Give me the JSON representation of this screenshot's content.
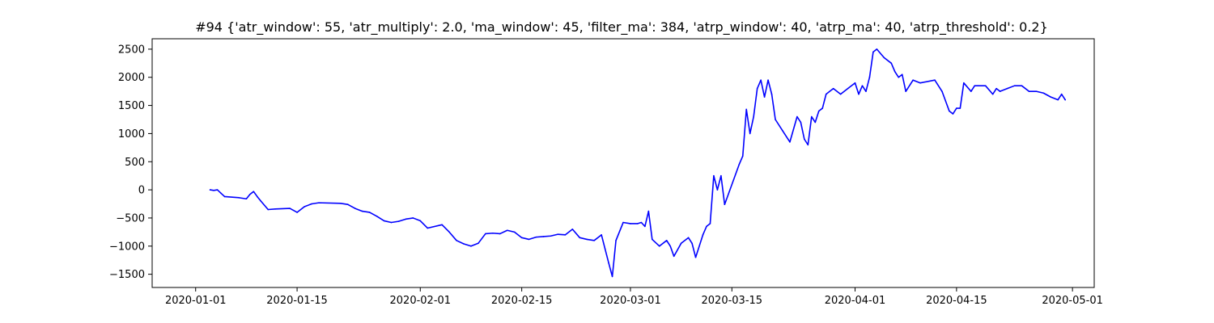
{
  "chart_data": {
    "type": "line",
    "title": "#94 {'atr_window': 55, 'atr_multiply': 2.0, 'ma_window': 45, 'filter_ma': 384, 'atrp_window': 40, 'atrp_ma': 40, 'atrp_threshold': 0.2}",
    "xlabel": "",
    "ylabel": "",
    "x_axis_type": "date",
    "xlim": [
      "2019-12-26",
      "2020-05-04"
    ],
    "ylim": [
      -1735,
      2685
    ],
    "grid": false,
    "colors": {
      "line": "#0000ff",
      "axes": "#000000",
      "background": "#ffffff"
    },
    "x_ticks": [
      {
        "date": "2020-01-01",
        "label": "2020-01-01"
      },
      {
        "date": "2020-01-15",
        "label": "2020-01-15"
      },
      {
        "date": "2020-02-01",
        "label": "2020-02-01"
      },
      {
        "date": "2020-02-15",
        "label": "2020-02-15"
      },
      {
        "date": "2020-03-01",
        "label": "2020-03-01"
      },
      {
        "date": "2020-03-15",
        "label": "2020-03-15"
      },
      {
        "date": "2020-04-01",
        "label": "2020-04-01"
      },
      {
        "date": "2020-04-15",
        "label": "2020-04-15"
      },
      {
        "date": "2020-05-01",
        "label": "2020-05-01"
      }
    ],
    "y_ticks": [
      {
        "value": 2500,
        "label": "2500"
      },
      {
        "value": 2000,
        "label": "2000"
      },
      {
        "value": 1500,
        "label": "1500"
      },
      {
        "value": 1000,
        "label": "1000"
      },
      {
        "value": 500,
        "label": "500"
      },
      {
        "value": 0,
        "label": "0"
      },
      {
        "value": -500,
        "label": "−500"
      },
      {
        "value": -1000,
        "label": "−1000"
      },
      {
        "value": -1500,
        "label": "−1500"
      }
    ],
    "series": [
      {
        "x": [
          "2020-01-03T00:00",
          "2020-01-03T12:00",
          "2020-01-04T00:00",
          "2020-01-04T12:00",
          "2020-01-05T00:00",
          "2020-01-07T00:00",
          "2020-01-08T00:00",
          "2020-01-08T12:00",
          "2020-01-09T00:00",
          "2020-01-09T12:00",
          "2020-01-10T00:00",
          "2020-01-11T00:00",
          "2020-01-12T00:00",
          "2020-01-14T00:00",
          "2020-01-15T00:00",
          "2020-01-16T00:00",
          "2020-01-17T00:00",
          "2020-01-18T00:00",
          "2020-01-21T00:00",
          "2020-01-22T00:00",
          "2020-01-23T00:00",
          "2020-01-24T00:00",
          "2020-01-25T00:00",
          "2020-01-26T00:00",
          "2020-01-27T00:00",
          "2020-01-28T00:00",
          "2020-01-29T00:00",
          "2020-01-30T00:00",
          "2020-01-31T00:00",
          "2020-02-01T00:00",
          "2020-02-02T00:00",
          "2020-02-04T00:00",
          "2020-02-05T00:00",
          "2020-02-06T00:00",
          "2020-02-07T00:00",
          "2020-02-08T00:00",
          "2020-02-09T00:00",
          "2020-02-10T00:00",
          "2020-02-11T00:00",
          "2020-02-12T00:00",
          "2020-02-13T00:00",
          "2020-02-14T00:00",
          "2020-02-15T00:00",
          "2020-02-16T00:00",
          "2020-02-17T00:00",
          "2020-02-18T00:00",
          "2020-02-19T00:00",
          "2020-02-20T00:00",
          "2020-02-21T00:00",
          "2020-02-22T00:00",
          "2020-02-23T00:00",
          "2020-02-24T00:00",
          "2020-02-25T00:00",
          "2020-02-26T00:00",
          "2020-02-26T12:00",
          "2020-02-27T00:00",
          "2020-02-27T12:00",
          "2020-02-28T00:00",
          "2020-02-29T00:00",
          "2020-03-01T00:00",
          "2020-03-02T00:00",
          "2020-03-02T12:00",
          "2020-03-03T00:00",
          "2020-03-03T12:00",
          "2020-03-04T00:00",
          "2020-03-05T00:00",
          "2020-03-06T00:00",
          "2020-03-06T12:00",
          "2020-03-07T00:00",
          "2020-03-08T00:00",
          "2020-03-09T00:00",
          "2020-03-09T12:00",
          "2020-03-10T00:00",
          "2020-03-11T00:00",
          "2020-03-11T12:00",
          "2020-03-12T00:00",
          "2020-03-12T12:00",
          "2020-03-13T00:00",
          "2020-03-13T12:00",
          "2020-03-14T00:00",
          "2020-03-16T00:00",
          "2020-03-16T12:00",
          "2020-03-17T00:00",
          "2020-03-17T12:00",
          "2020-03-18T00:00",
          "2020-03-18T12:00",
          "2020-03-19T00:00",
          "2020-03-19T12:00",
          "2020-03-20T00:00",
          "2020-03-20T12:00",
          "2020-03-21T00:00",
          "2020-03-22T00:00",
          "2020-03-23T00:00",
          "2020-03-24T00:00",
          "2020-03-24T12:00",
          "2020-03-25T00:00",
          "2020-03-25T12:00",
          "2020-03-26T00:00",
          "2020-03-26T12:00",
          "2020-03-27T00:00",
          "2020-03-27T12:00",
          "2020-03-28T00:00",
          "2020-03-29T00:00",
          "2020-03-30T00:00",
          "2020-03-31T00:00",
          "2020-04-01T00:00",
          "2020-04-01T12:00",
          "2020-04-02T00:00",
          "2020-04-02T12:00",
          "2020-04-03T00:00",
          "2020-04-03T12:00",
          "2020-04-04T00:00",
          "2020-04-05T00:00",
          "2020-04-06T00:00",
          "2020-04-06T12:00",
          "2020-04-07T00:00",
          "2020-04-07T12:00",
          "2020-04-08T00:00",
          "2020-04-09T00:00",
          "2020-04-10T00:00",
          "2020-04-12T00:00",
          "2020-04-13T00:00",
          "2020-04-14T00:00",
          "2020-04-14T12:00",
          "2020-04-15T00:00",
          "2020-04-15T12:00",
          "2020-04-16T00:00",
          "2020-04-17T00:00",
          "2020-04-17T12:00",
          "2020-04-18T00:00",
          "2020-04-19T00:00",
          "2020-04-20T00:00",
          "2020-04-20T12:00",
          "2020-04-21T00:00",
          "2020-04-22T00:00",
          "2020-04-23T00:00",
          "2020-04-24T00:00",
          "2020-04-25T00:00",
          "2020-04-26T00:00",
          "2020-04-27T00:00",
          "2020-04-28T00:00",
          "2020-04-29T00:00",
          "2020-04-29T12:00",
          "2020-04-30T00:00"
        ],
        "y": [
          0,
          -10,
          0,
          -60,
          -120,
          -140,
          -160,
          -80,
          -30,
          -120,
          -200,
          -350,
          -340,
          -330,
          -400,
          -300,
          -250,
          -230,
          -240,
          -260,
          -330,
          -380,
          -400,
          -470,
          -550,
          -580,
          -560,
          -520,
          -500,
          -550,
          -680,
          -620,
          -750,
          -900,
          -960,
          -1000,
          -950,
          -780,
          -770,
          -780,
          -720,
          -750,
          -850,
          -880,
          -840,
          -830,
          -820,
          -790,
          -800,
          -700,
          -850,
          -880,
          -900,
          -800,
          -1050,
          -1300,
          -1540,
          -900,
          -580,
          -600,
          -600,
          -580,
          -650,
          -380,
          -880,
          -1000,
          -900,
          -1000,
          -1180,
          -950,
          -850,
          -950,
          -1200,
          -800,
          -650,
          -600,
          250,
          0,
          250,
          -260,
          450,
          600,
          1430,
          1000,
          1300,
          1800,
          1950,
          1650,
          1950,
          1700,
          1250,
          1050,
          850,
          1300,
          1200,
          900,
          800,
          1300,
          1200,
          1400,
          1450,
          1700,
          1800,
          1700,
          1800,
          1900,
          1700,
          1850,
          1750,
          2000,
          2450,
          2500,
          2350,
          2250,
          2100,
          2000,
          2050,
          1750,
          1950,
          1900,
          1950,
          1750,
          1400,
          1350,
          1450,
          1450,
          1900,
          1750,
          1850,
          1850,
          1850,
          1700,
          1800,
          1750,
          1800,
          1850,
          1850,
          1750,
          1750,
          1720,
          1650,
          1600,
          1700,
          1600
        ]
      }
    ]
  }
}
